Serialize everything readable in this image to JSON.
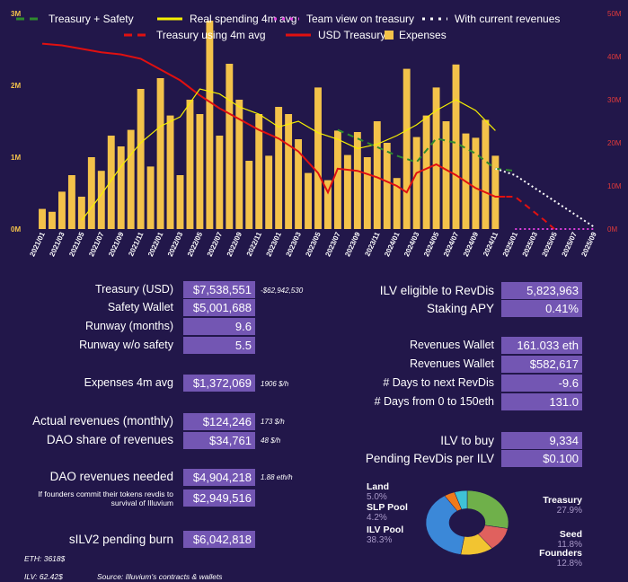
{
  "chart_data": {
    "type": "bar",
    "title": "",
    "xlabel": "",
    "ylabel": "",
    "ylim": [
      0,
      3000000
    ],
    "y2lim": [
      0,
      50000000
    ],
    "y_ticks": [
      "0M",
      "1M",
      "2M",
      "3M"
    ],
    "y2_ticks": [
      "0M",
      "10M",
      "20M",
      "30M",
      "40M",
      "50M"
    ],
    "x_tick_labels": [
      "2021/01",
      "2021/03",
      "2021/05",
      "2021/07",
      "2021/09",
      "2021/11",
      "2022/01",
      "2022/03",
      "2022/05",
      "2022/07",
      "2022/09",
      "2022/11",
      "2023/01",
      "2023/03",
      "2023/05",
      "2023/07",
      "2023/09",
      "2023/11",
      "2024/01",
      "2024/03",
      "2024/05",
      "2024/07",
      "2024/09",
      "2024/11",
      "2025/01",
      "2025/03",
      "2025/05",
      "2025/07",
      "2025/09"
    ],
    "legend": [
      {
        "name": "Treasury + Safety",
        "color": "#2f8a2f",
        "style": "dashed"
      },
      {
        "name": "Real spending 4m avg",
        "color": "#f6f000",
        "style": "solid"
      },
      {
        "name": "Team view on treasury",
        "color": "#e040e0",
        "style": "dotted"
      },
      {
        "name": "With current revenues",
        "color": "#ffffff",
        "style": "dotted"
      },
      {
        "name": "Treasury using 4m avg",
        "color": "#e01010",
        "style": "dashed"
      },
      {
        "name": "USD Treasury",
        "color": "#e01010",
        "style": "solid"
      },
      {
        "name": "Expenses",
        "color": "#f3c24a",
        "style": "bar"
      }
    ],
    "legend_position": "top",
    "expenses_months": [
      "2021/01",
      "2021/02",
      "2021/03",
      "2021/04",
      "2021/05",
      "2021/06",
      "2021/07",
      "2021/08",
      "2021/09",
      "2021/10",
      "2021/11",
      "2021/12",
      "2022/01",
      "2022/02",
      "2022/03",
      "2022/04",
      "2022/05",
      "2022/06",
      "2022/07",
      "2022/08",
      "2022/09",
      "2022/10",
      "2022/11",
      "2022/12",
      "2023/01",
      "2023/02",
      "2023/03",
      "2023/04",
      "2023/05",
      "2023/06",
      "2023/07",
      "2023/08",
      "2023/09",
      "2023/10",
      "2023/11",
      "2023/12",
      "2024/01",
      "2024/02",
      "2024/03",
      "2024/04",
      "2024/05",
      "2024/06",
      "2024/07",
      "2024/08",
      "2024/09",
      "2024/10",
      "2024/11"
    ],
    "expenses": [
      280000,
      240000,
      520000,
      750000,
      450000,
      1000000,
      810000,
      1300000,
      1150000,
      1380000,
      1950000,
      870000,
      2100000,
      1580000,
      750000,
      1800000,
      1600000,
      2900000,
      1300000,
      2300000,
      1800000,
      950000,
      1600000,
      1020000,
      1700000,
      1600000,
      1250000,
      780000,
      1970000,
      680000,
      1370000,
      1030000,
      1350000,
      1000000,
      1500000,
      1200000,
      710000,
      2230000,
      1280000,
      1580000,
      1970000,
      1500000,
      2290000,
      1330000,
      1270000,
      1520000,
      1020000
    ],
    "series": [
      {
        "name": "USD Treasury",
        "axis": "right",
        "points": [
          [
            "2021/01",
            43000000
          ],
          [
            "2021/03",
            42600000
          ],
          [
            "2021/05",
            41800000
          ],
          [
            "2021/07",
            41000000
          ],
          [
            "2021/09",
            40500000
          ],
          [
            "2021/11",
            39500000
          ],
          [
            "2022/01",
            37000000
          ],
          [
            "2022/03",
            34500000
          ],
          [
            "2022/05",
            31000000
          ],
          [
            "2022/07",
            28000000
          ],
          [
            "2022/09",
            25500000
          ],
          [
            "2022/11",
            23000000
          ],
          [
            "2023/01",
            21000000
          ],
          [
            "2023/03",
            18000000
          ],
          [
            "2023/05",
            13000000
          ],
          [
            "2023/06",
            8500000
          ],
          [
            "2023/07",
            14000000
          ],
          [
            "2023/09",
            13500000
          ],
          [
            "2023/11",
            12000000
          ],
          [
            "2024/01",
            10000000
          ],
          [
            "2024/02",
            8500000
          ],
          [
            "2024/03",
            13000000
          ],
          [
            "2024/05",
            15000000
          ],
          [
            "2024/07",
            12500000
          ],
          [
            "2024/09",
            9500000
          ],
          [
            "2024/11",
            7500000
          ],
          [
            "2024/12",
            7500000
          ]
        ]
      },
      {
        "name": "Real spending 4m avg",
        "axis": "left",
        "points": [
          [
            "2021/05",
            120000
          ],
          [
            "2021/07",
            480000
          ],
          [
            "2021/09",
            870000
          ],
          [
            "2021/11",
            1200000
          ],
          [
            "2022/01",
            1430000
          ],
          [
            "2022/03",
            1560000
          ],
          [
            "2022/05",
            1950000
          ],
          [
            "2022/07",
            1880000
          ],
          [
            "2022/09",
            1700000
          ],
          [
            "2022/11",
            1600000
          ],
          [
            "2023/01",
            1420000
          ],
          [
            "2023/03",
            1500000
          ],
          [
            "2023/05",
            1340000
          ],
          [
            "2023/07",
            1250000
          ],
          [
            "2023/09",
            1120000
          ],
          [
            "2023/11",
            1180000
          ],
          [
            "2024/01",
            1300000
          ],
          [
            "2024/03",
            1450000
          ],
          [
            "2024/05",
            1650000
          ],
          [
            "2024/07",
            1800000
          ],
          [
            "2024/09",
            1650000
          ],
          [
            "2024/11",
            1370000
          ]
        ]
      },
      {
        "name": "Treasury + Safety",
        "axis": "right",
        "points": [
          [
            "2023/07",
            23000000
          ],
          [
            "2023/09",
            21000000
          ],
          [
            "2023/11",
            19000000
          ],
          [
            "2024/01",
            17000000
          ],
          [
            "2024/03",
            15500000
          ],
          [
            "2024/05",
            21000000
          ],
          [
            "2024/07",
            20000000
          ],
          [
            "2024/09",
            17500000
          ],
          [
            "2024/11",
            14000000
          ],
          [
            "2025/01",
            13500000
          ]
        ]
      },
      {
        "name": "Treasury using 4m avg",
        "axis": "right",
        "points": [
          [
            "2024/11",
            7500000
          ],
          [
            "2025/01",
            7500000
          ],
          [
            "2025/04",
            2000000
          ],
          [
            "2025/05",
            0
          ]
        ]
      },
      {
        "name": "With current revenues",
        "axis": "right",
        "points": [
          [
            "2024/11",
            14000000
          ],
          [
            "2025/01",
            12500000
          ],
          [
            "2025/09",
            500000
          ]
        ]
      },
      {
        "name": "Team view on treasury",
        "axis": "right",
        "points": [
          [
            "2025/01",
            0
          ],
          [
            "2025/09",
            0
          ]
        ]
      }
    ]
  },
  "left_metrics": [
    {
      "label": "Treasury (USD)",
      "value": "$7,538,551",
      "note": "-$62,942,530"
    },
    {
      "label": "Safety Wallet",
      "value": "$5,001,688",
      "note": ""
    },
    {
      "label": "Runway (months)",
      "value": "9.6",
      "note": ""
    },
    {
      "label": "Runway w/o safety",
      "value": "5.5",
      "note": ""
    },
    {
      "label": "Expenses 4m avg",
      "value": "$1,372,069",
      "note": "1906 $/h"
    },
    {
      "label": "Actual revenues (monthly)",
      "value": "$124,246",
      "note": "173 $/h"
    },
    {
      "label": "DAO share of revenues",
      "value": "$34,761",
      "note": "48 $/h"
    },
    {
      "label": "DAO revenues needed",
      "value": "$4,904,218",
      "note": "1.88 eth/h"
    },
    {
      "label": "If founders commit their tokens revdis to survival of Illuvium",
      "value": "$2,949,516",
      "note": ""
    },
    {
      "label": "sILV2 pending burn",
      "value": "$6,042,818",
      "note": ""
    }
  ],
  "right_metrics": [
    {
      "label": "ILV eligible to RevDis",
      "value": "5,823,963"
    },
    {
      "label": "Staking APY",
      "value": "0.41%"
    },
    {
      "label": "Revenues Wallet",
      "value": "161.033 eth"
    },
    {
      "label": "Revenues Wallet",
      "value": "$582,617"
    },
    {
      "label": "# Days to next RevDis",
      "value": "-9.6"
    },
    {
      "label": "# Days from 0 to 150eth",
      "value": "131.0"
    },
    {
      "label": "ILV to buy",
      "value": "9,334"
    },
    {
      "label": "Pending RevDis per ILV",
      "value": "$0.100"
    }
  ],
  "footer": {
    "eth": "ETH: 3618$",
    "ilv": "ILV: 62.42$",
    "source": "Source: Illuvium's contracts & wallets"
  },
  "donut": {
    "slices": [
      {
        "name": "Treasury",
        "pct": 27.9,
        "pct_label": "27.9%",
        "color": "#6fb04a"
      },
      {
        "name": "Seed",
        "pct": 11.8,
        "pct_label": "11.8%",
        "color": "#e0615e"
      },
      {
        "name": "Founders",
        "pct": 12.8,
        "pct_label": "12.8%",
        "color": "#f2c431"
      },
      {
        "name": "ILV Pool",
        "pct": 38.3,
        "pct_label": "38.3%",
        "color": "#3b88d8"
      },
      {
        "name": "SLP Pool",
        "pct": 4.2,
        "pct_label": "4.2%",
        "color": "#f07a1a"
      },
      {
        "name": "Land",
        "pct": 5.0,
        "pct_label": "5.0%",
        "color": "#3fc2d6"
      }
    ]
  }
}
